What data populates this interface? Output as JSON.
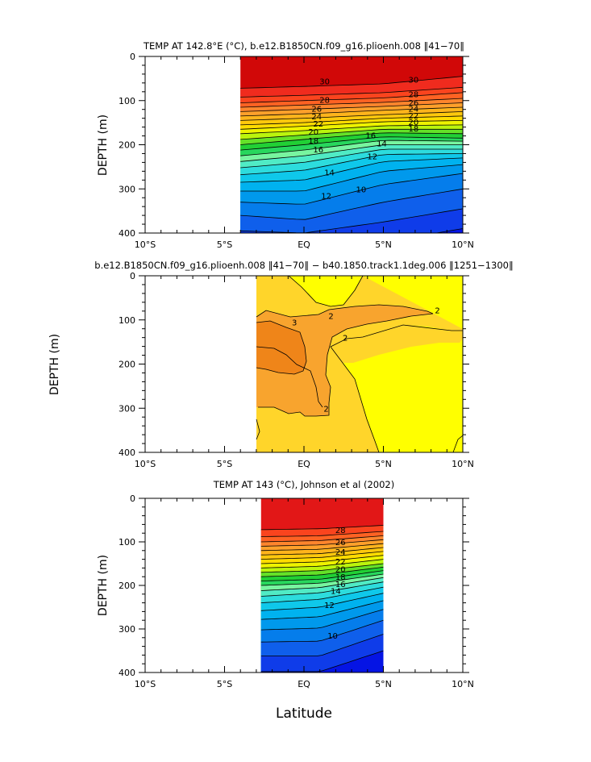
{
  "chart_data": [
    {
      "type": "contour",
      "title": "TEMP AT 142.8°E (°C), b.e12.B1850CN.f09_g16.plioenh.008 ‖41−70‖",
      "ylabel": "DEPTH  (m)",
      "xlim": [
        -10,
        10
      ],
      "ylim": [
        400,
        0
      ],
      "x_tick_values": [
        -10,
        -5,
        0,
        5,
        10
      ],
      "x_tick_labels": [
        "10°S",
        "5°S",
        "EQ",
        "5°N",
        "10°N"
      ],
      "y_tick_values": [
        0,
        100,
        200,
        300,
        400
      ],
      "y_tick_labels": [
        "0",
        "100",
        "200",
        "300",
        "400"
      ],
      "data_x_range": [
        -4,
        10
      ],
      "contour_interval": 1,
      "bands": [
        {
          "level": 29,
          "depth_at_x": [
            [
              -4,
              72
            ],
            [
              0,
              68
            ],
            [
              5,
              62
            ],
            [
              10,
              45
            ]
          ]
        },
        {
          "level": 28,
          "depth_at_x": [
            [
              -4,
              92
            ],
            [
              0,
              88
            ],
            [
              5,
              82
            ],
            [
              10,
              70
            ]
          ]
        },
        {
          "level": 27,
          "depth_at_x": [
            [
              -4,
              105
            ],
            [
              0,
              100
            ],
            [
              5,
              94
            ],
            [
              10,
              82
            ]
          ]
        },
        {
          "level": 26,
          "depth_at_x": [
            [
              -4,
              115
            ],
            [
              0,
              110
            ],
            [
              5,
              104
            ],
            [
              10,
              95
            ]
          ]
        },
        {
          "level": 25,
          "depth_at_x": [
            [
              -4,
              125
            ],
            [
              0,
              120
            ],
            [
              5,
              113
            ],
            [
              10,
              105
            ]
          ]
        },
        {
          "level": 24,
          "depth_at_x": [
            [
              -4,
              135
            ],
            [
              0,
              130
            ],
            [
              5,
              122
            ],
            [
              10,
              115
            ]
          ]
        },
        {
          "level": 23,
          "depth_at_x": [
            [
              -4,
              145
            ],
            [
              0,
              140
            ],
            [
              5,
              132
            ],
            [
              10,
              125
            ]
          ]
        },
        {
          "level": 22,
          "depth_at_x": [
            [
              -4,
              155
            ],
            [
              0,
              150
            ],
            [
              5,
              140
            ],
            [
              10,
              135
            ]
          ]
        },
        {
          "level": 21,
          "depth_at_x": [
            [
              -4,
              165
            ],
            [
              0,
              158
            ],
            [
              5,
              148
            ],
            [
              10,
              145
            ]
          ]
        },
        {
          "level": 20,
          "depth_at_x": [
            [
              -4,
              175
            ],
            [
              0,
              168
            ],
            [
              5,
              157
            ],
            [
              10,
              155
            ]
          ]
        },
        {
          "level": 19,
          "depth_at_x": [
            [
              -4,
              188
            ],
            [
              0,
              178
            ],
            [
              5,
              165
            ],
            [
              10,
              165
            ]
          ]
        },
        {
          "level": 18,
          "depth_at_x": [
            [
              -4,
              200
            ],
            [
              0,
              188
            ],
            [
              5,
              173
            ],
            [
              10,
              175
            ]
          ]
        },
        {
          "level": 17,
          "depth_at_x": [
            [
              -4,
              212
            ],
            [
              0,
              200
            ],
            [
              5,
              182
            ],
            [
              10,
              185
            ]
          ]
        },
        {
          "level": 16,
          "depth_at_x": [
            [
              -4,
              225
            ],
            [
              0,
              212
            ],
            [
              5,
              190
            ],
            [
              10,
              192
            ]
          ]
        },
        {
          "level": 15,
          "depth_at_x": [
            [
              -4,
              238
            ],
            [
              0,
              225
            ],
            [
              5,
              200
            ],
            [
              10,
              200
            ]
          ]
        },
        {
          "level": 14,
          "depth_at_x": [
            [
              -4,
              252
            ],
            [
              0,
              240
            ],
            [
              5,
              210
            ],
            [
              10,
              210
            ]
          ]
        },
        {
          "level": 13,
          "depth_at_x": [
            [
              -4,
              268
            ],
            [
              0,
              258
            ],
            [
              5,
              222
            ],
            [
              10,
              220
            ]
          ]
        },
        {
          "level": 12,
          "depth_at_x": [
            [
              -4,
              285
            ],
            [
              0,
              280
            ],
            [
              5,
              238
            ],
            [
              10,
              230
            ]
          ]
        },
        {
          "level": 11,
          "depth_at_x": [
            [
              -4,
              305
            ],
            [
              0,
              305
            ],
            [
              5,
              260
            ],
            [
              10,
              245
            ]
          ]
        },
        {
          "level": 10,
          "depth_at_x": [
            [
              -4,
              330
            ],
            [
              0,
              335
            ],
            [
              5,
              290
            ],
            [
              10,
              265
            ]
          ]
        },
        {
          "level": 9,
          "depth_at_x": [
            [
              -4,
              360
            ],
            [
              0,
              370
            ],
            [
              5,
              330
            ],
            [
              10,
              300
            ]
          ]
        },
        {
          "level": 8,
          "depth_at_x": [
            [
              -4,
              395
            ],
            [
              0,
              400
            ],
            [
              5,
              375
            ],
            [
              10,
              345
            ]
          ]
        },
        {
          "level": 7,
          "depth_at_x": [
            [
              -4,
              420
            ],
            [
              0,
              420
            ],
            [
              5,
              420
            ],
            [
              10,
              390
            ]
          ]
        }
      ],
      "contour_labels": [
        {
          "text": "30",
          "x": 1.3,
          "depth": 56
        },
        {
          "text": "30",
          "x": 6.9,
          "depth": 52
        },
        {
          "text": "28",
          "x": 1.3,
          "depth": 98
        },
        {
          "text": "28",
          "x": 6.9,
          "depth": 85
        },
        {
          "text": "26",
          "x": 0.8,
          "depth": 118
        },
        {
          "text": "26",
          "x": 6.9,
          "depth": 104
        },
        {
          "text": "24",
          "x": 0.8,
          "depth": 135
        },
        {
          "text": "24",
          "x": 6.9,
          "depth": 118
        },
        {
          "text": "22",
          "x": 0.9,
          "depth": 152
        },
        {
          "text": "22",
          "x": 6.9,
          "depth": 133
        },
        {
          "text": "20",
          "x": 0.6,
          "depth": 170
        },
        {
          "text": "20",
          "x": 6.9,
          "depth": 148
        },
        {
          "text": "18",
          "x": 0.6,
          "depth": 190
        },
        {
          "text": "18",
          "x": 6.9,
          "depth": 163
        },
        {
          "text": "16",
          "x": 0.9,
          "depth": 210
        },
        {
          "text": "16",
          "x": 4.2,
          "depth": 178
        },
        {
          "text": "14",
          "x": 1.6,
          "depth": 262
        },
        {
          "text": "14",
          "x": 4.9,
          "depth": 196
        },
        {
          "text": "12",
          "x": 1.4,
          "depth": 315
        },
        {
          "text": "12",
          "x": 4.3,
          "depth": 226
        },
        {
          "text": "10",
          "x": 3.6,
          "depth": 300
        }
      ]
    },
    {
      "type": "contour",
      "title": "b.e12.B1850CN.f09_g16.plioenh.008 ‖41−70‖ − b40.1850.track1.1deg.006 ‖1251−1300‖",
      "ylabel": "DEPTH  (m)",
      "xlim": [
        -10,
        10
      ],
      "ylim": [
        400,
        0
      ],
      "x_tick_values": [
        -10,
        -5,
        0,
        5,
        10
      ],
      "x_tick_labels": [
        "10°S",
        "5°S",
        "EQ",
        "5°N",
        "10°N"
      ],
      "y_tick_values": [
        0,
        100,
        200,
        300,
        400
      ],
      "y_tick_labels": [
        "0",
        "100",
        "200",
        "300",
        "400"
      ],
      "data_x_range": [
        -3,
        10
      ],
      "contour_interval": 1,
      "region_levels": [
        1,
        2,
        3
      ],
      "contour_labels": [
        {
          "text": "2",
          "x": 1.7,
          "depth": 90
        },
        {
          "text": "2",
          "x": 8.4,
          "depth": 78
        },
        {
          "text": "2",
          "x": 2.6,
          "depth": 140
        },
        {
          "text": "3",
          "x": -0.6,
          "depth": 105
        },
        {
          "text": "2",
          "x": 1.4,
          "depth": 300
        }
      ]
    },
    {
      "type": "contour",
      "title": "TEMP AT 143 (°C), Johnson et al (2002)",
      "ylabel": "DEPTH  (m)",
      "xlabel": "Latitude",
      "xlim": [
        -10,
        10
      ],
      "ylim": [
        400,
        0
      ],
      "x_tick_values": [
        -10,
        -5,
        0,
        5,
        10
      ],
      "x_tick_labels": [
        "10°S",
        "5°S",
        "EQ",
        "5°N",
        "10°N"
      ],
      "y_tick_values": [
        0,
        100,
        200,
        300,
        400
      ],
      "y_tick_labels": [
        "0",
        "100",
        "200",
        "300",
        "400"
      ],
      "data_x_range": [
        -2.7,
        5
      ],
      "contour_interval": 1,
      "bands": [
        {
          "level": 28,
          "depth_at_x": [
            [
              -2.7,
              72
            ],
            [
              1,
              70
            ],
            [
              5,
              62
            ]
          ]
        },
        {
          "level": 27,
          "depth_at_x": [
            [
              -2.7,
              88
            ],
            [
              1,
              86
            ],
            [
              5,
              76
            ]
          ]
        },
        {
          "level": 26,
          "depth_at_x": [
            [
              -2.7,
              100
            ],
            [
              1,
              97
            ],
            [
              5,
              86
            ]
          ]
        },
        {
          "level": 25,
          "depth_at_x": [
            [
              -2.7,
              110
            ],
            [
              1,
              107
            ],
            [
              5,
              95
            ]
          ]
        },
        {
          "level": 24,
          "depth_at_x": [
            [
              -2.7,
              120
            ],
            [
              1,
              117
            ],
            [
              5,
              104
            ]
          ]
        },
        {
          "level": 23,
          "depth_at_x": [
            [
              -2.7,
              130
            ],
            [
              1,
              127
            ],
            [
              5,
              113
            ]
          ]
        },
        {
          "level": 22,
          "depth_at_x": [
            [
              -2.7,
              140
            ],
            [
              1,
              136
            ],
            [
              5,
              122
            ]
          ]
        },
        {
          "level": 21,
          "depth_at_x": [
            [
              -2.7,
              150
            ],
            [
              1,
              146
            ],
            [
              5,
              131
            ]
          ]
        },
        {
          "level": 20,
          "depth_at_x": [
            [
              -2.7,
              160
            ],
            [
              1,
              156
            ],
            [
              5,
              140
            ]
          ]
        },
        {
          "level": 19,
          "depth_at_x": [
            [
              -2.7,
              170
            ],
            [
              1,
              166
            ],
            [
              5,
              150
            ]
          ]
        },
        {
          "level": 18,
          "depth_at_x": [
            [
              -2.7,
              180
            ],
            [
              1,
              176
            ],
            [
              5,
              158
            ]
          ]
        },
        {
          "level": 17,
          "depth_at_x": [
            [
              -2.7,
              190
            ],
            [
              1,
              186
            ],
            [
              5,
              166
            ]
          ]
        },
        {
          "level": 16,
          "depth_at_x": [
            [
              -2.7,
              200
            ],
            [
              1,
              195
            ],
            [
              5,
              174
            ]
          ]
        },
        {
          "level": 15,
          "depth_at_x": [
            [
              -2.7,
              212
            ],
            [
              1,
              205
            ],
            [
              5,
              182
            ]
          ]
        },
        {
          "level": 14,
          "depth_at_x": [
            [
              -2.7,
              225
            ],
            [
              1,
              217
            ],
            [
              5,
              192
            ]
          ]
        },
        {
          "level": 13,
          "depth_at_x": [
            [
              -2.7,
              240
            ],
            [
              1,
              232
            ],
            [
              5,
              204
            ]
          ]
        },
        {
          "level": 12,
          "depth_at_x": [
            [
              -2.7,
              258
            ],
            [
              1,
              250
            ],
            [
              5,
              218
            ]
          ]
        },
        {
          "level": 11,
          "depth_at_x": [
            [
              -2.7,
              278
            ],
            [
              1,
              272
            ],
            [
              5,
              235
            ]
          ]
        },
        {
          "level": 10,
          "depth_at_x": [
            [
              -2.7,
              302
            ],
            [
              1,
              298
            ],
            [
              5,
              255
            ]
          ]
        },
        {
          "level": 9,
          "depth_at_x": [
            [
              -2.7,
              330
            ],
            [
              1,
              328
            ],
            [
              5,
              280
            ]
          ]
        },
        {
          "level": 8,
          "depth_at_x": [
            [
              -2.7,
              362
            ],
            [
              1,
              362
            ],
            [
              5,
              312
            ]
          ]
        },
        {
          "level": 7,
          "depth_at_x": [
            [
              -2.7,
              398
            ],
            [
              1,
              398
            ],
            [
              5,
              350
            ]
          ]
        }
      ],
      "contour_labels": [
        {
          "text": "28",
          "x": 2.3,
          "depth": 72
        },
        {
          "text": "26",
          "x": 2.3,
          "depth": 100
        },
        {
          "text": "24",
          "x": 2.3,
          "depth": 122
        },
        {
          "text": "22",
          "x": 2.3,
          "depth": 144
        },
        {
          "text": "20",
          "x": 2.3,
          "depth": 162
        },
        {
          "text": "18",
          "x": 2.3,
          "depth": 180
        },
        {
          "text": "16",
          "x": 2.3,
          "depth": 196
        },
        {
          "text": "14",
          "x": 2.0,
          "depth": 212
        },
        {
          "text": "12",
          "x": 1.6,
          "depth": 244
        },
        {
          "text": "10",
          "x": 1.8,
          "depth": 315
        }
      ]
    }
  ]
}
